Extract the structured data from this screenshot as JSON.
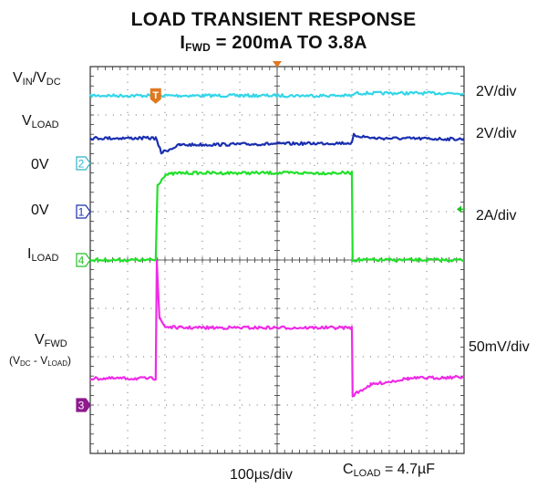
{
  "chart_data": {
    "type": "line",
    "title": "LOAD TRANSIENT RESPONSE",
    "subtitle": {
      "main": "I",
      "sub": "FWD",
      "rest": " = 200mA TO 3.8A"
    },
    "time_scale": "100µs/div",
    "condition": {
      "main": "C",
      "sub": "LOAD",
      "rest": " = 4.7µF"
    },
    "grid": {
      "on": true,
      "x_divisions": 10,
      "y_divisions": 8
    },
    "x_range_div": [
      0,
      10
    ],
    "y_range_div": [
      0,
      8
    ],
    "series": [
      {
        "name": "VIN/VDC",
        "color": "#33d6e8",
        "scale": "2V/div",
        "points": [
          [
            0,
            7.4
          ],
          [
            4.0,
            7.4
          ],
          [
            4.0,
            7.4
          ],
          [
            10,
            7.4
          ]
        ],
        "step_up_at": 7.05
      },
      {
        "name": "VLOAD",
        "color": "#1a2fb0",
        "scale": "2V/div",
        "points": [
          [
            0,
            6.52
          ],
          [
            1.75,
            6.52
          ],
          [
            1.9,
            6.22
          ],
          [
            2.4,
            6.38
          ],
          [
            7.0,
            6.42
          ],
          [
            7.05,
            6.58
          ],
          [
            7.6,
            6.52
          ],
          [
            10,
            6.5
          ]
        ]
      },
      {
        "name": "ILOAD",
        "color": "#22e02a",
        "scale": "2A/div",
        "points": [
          [
            0,
            4.0
          ],
          [
            1.75,
            4.0
          ],
          [
            1.8,
            5.55
          ],
          [
            2.0,
            5.76
          ],
          [
            2.4,
            5.8
          ],
          [
            7.0,
            5.8
          ],
          [
            7.02,
            4.0
          ],
          [
            10,
            4.0
          ]
        ]
      },
      {
        "name": "VFWD",
        "color": "#ee2be6",
        "scale": "50mV/div",
        "points": [
          [
            0,
            1.55
          ],
          [
            1.75,
            1.55
          ],
          [
            1.78,
            4.0
          ],
          [
            1.85,
            2.8
          ],
          [
            2.0,
            2.62
          ],
          [
            2.4,
            2.6
          ],
          [
            7.0,
            2.6
          ],
          [
            7.02,
            1.2
          ],
          [
            7.5,
            1.42
          ],
          [
            8.5,
            1.55
          ],
          [
            10,
            1.58
          ]
        ]
      }
    ]
  },
  "left_labels": {
    "vin": {
      "a": "V",
      "a_sub": "IN",
      "sep": "/V",
      "b_sub": "DC"
    },
    "vload": {
      "main": "V",
      "sub": "LOAD"
    },
    "zero_a": "0V",
    "zero_b": "0V",
    "iload": {
      "main": "I",
      "sub": "LOAD"
    },
    "vfwd": {
      "main": "V",
      "sub": "FWD"
    },
    "vfwd_note": {
      "open": "(V",
      "sub1": "DC",
      "mid": " - V",
      "sub2": "LOAD",
      "close": ")"
    }
  },
  "right_labels": {
    "ch1": "2V/div",
    "ch2": "2V/div",
    "ch3": "2A/div",
    "ch4": "50mV/div"
  },
  "markers": {
    "trigger": "T",
    "ch2": "2",
    "ch1": "1",
    "ch4": "4",
    "ch3": "3"
  },
  "colors": {
    "grid_border": "#333333",
    "dot": "#666666",
    "trigger": "#e07820",
    "marker_ch2": "#2cb5c8",
    "marker_ch1": "#1a2fb0",
    "marker_ch4": "#22c026",
    "marker_ch3": "#8e1a8e"
  }
}
